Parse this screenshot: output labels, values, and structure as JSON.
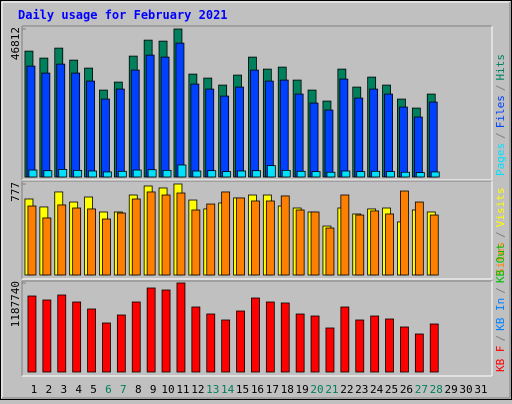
{
  "chart_data": [
    {
      "type": "bar",
      "title": "Daily usage for February 2021",
      "categories": [
        "1",
        "2",
        "3",
        "4",
        "5",
        "6",
        "7",
        "8",
        "9",
        "10",
        "11",
        "12",
        "13",
        "14",
        "15",
        "16",
        "17",
        "18",
        "19",
        "20",
        "21",
        "22",
        "23",
        "24",
        "25",
        "26",
        "27",
        "28",
        "29",
        "30",
        "31"
      ],
      "category_colors": [
        "#000000",
        "#000000",
        "#000000",
        "#000000",
        "#000000",
        "#00805c",
        "#00805c",
        "#000000",
        "#000000",
        "#000000",
        "#000000",
        "#000000",
        "#00805c",
        "#00805c",
        "#000000",
        "#000000",
        "#000000",
        "#000000",
        "#000000",
        "#00805c",
        "#00805c",
        "#000000",
        "#000000",
        "#000000",
        "#000000",
        "#000000",
        "#00805c",
        "#00805c",
        "#000000",
        "#000000",
        "#000000"
      ],
      "legend_separator": "/",
      "ylim": [
        0,
        46812
      ],
      "yticks": [
        46812
      ],
      "series": [
        {
          "name": "Hits",
          "color": "#00805c",
          "values": [
            39816,
            37604,
            40764,
            36972,
            34444,
            27492,
            30020,
            38236,
            43292,
            42976,
            46812,
            32548,
            31284,
            29072,
            32232,
            37920,
            34128,
            34760,
            30652,
            27492,
            24016,
            34128,
            28440,
            31600,
            29072,
            24648,
            21804,
            26228,
            null,
            null,
            null
          ]
        },
        {
          "name": "Files",
          "color": "#0040ff",
          "values": [
            35076,
            32864,
            35708,
            32864,
            30336,
            24648,
            27808,
            33812,
            38552,
            37920,
            42344,
            29388,
            27808,
            25596,
            28440,
            33812,
            30336,
            30652,
            26228,
            23384,
            21172,
            30968,
            24964,
            27808,
            26228,
            22120,
            18960,
            23700,
            null,
            null,
            null
          ]
        },
        {
          "name": "Pages",
          "color": "#00e0ff",
          "values": [
            2200,
            2000,
            2400,
            2100,
            1900,
            1600,
            1800,
            2200,
            2300,
            2100,
            3800,
            1900,
            2000,
            1700,
            1900,
            2000,
            3600,
            2100,
            1800,
            1700,
            1500,
            1900,
            1700,
            1800,
            1700,
            1500,
            1400,
            1600,
            null,
            null,
            null
          ]
        }
      ]
    },
    {
      "type": "bar",
      "ylim": [
        0,
        777
      ],
      "yticks": [
        777
      ],
      "series": [
        {
          "name": "Visits",
          "color": "#ffff00",
          "values": [
            649,
            581,
            709,
            623,
            666,
            538,
            538,
            683,
            760,
            743,
            777,
            640,
            564,
            615,
            658,
            683,
            683,
            589,
            572,
            538,
            418,
            572,
            521,
            564,
            572,
            453,
            555,
            538,
            null,
            null,
            null
          ]
        },
        {
          "name": "Sites",
          "color": "#ff8000",
          "values": [
            589,
            487,
            598,
            572,
            564,
            478,
            529,
            649,
            709,
            683,
            700,
            555,
            606,
            709,
            658,
            632,
            632,
            675,
            555,
            538,
            401,
            683,
            512,
            547,
            521,
            717,
            623,
            512,
            null,
            null,
            null
          ]
        }
      ]
    },
    {
      "type": "bar",
      "ylim": [
        0,
        1187740
      ],
      "yticks": [
        1187740
      ],
      "series": [
        {
          "name": "KB Out",
          "color": "#00c000"
        },
        {
          "name": "KB In",
          "color": "#0080ff"
        },
        {
          "name": "KB F",
          "color": "#ff0000",
          "values": [
            1014220,
            960840,
            1027565,
            934150,
            840735,
            653905,
            760665,
            934150,
            1120980,
            1094290,
            1187740,
            867425,
            774010,
            693940,
            814045,
            987530,
            934150,
            920805,
            774010,
            747320,
            587180,
            867425,
            693940,
            747320,
            707285,
            600525,
            507110,
            640560,
            null,
            null,
            null
          ]
        }
      ]
    }
  ]
}
